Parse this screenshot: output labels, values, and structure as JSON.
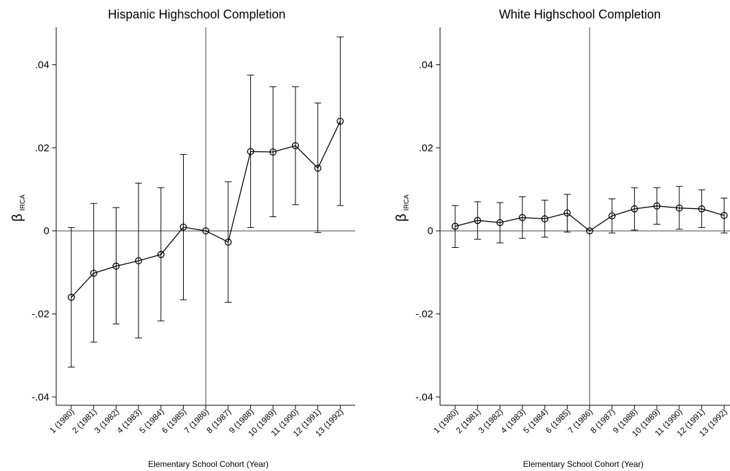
{
  "chart_data": [
    {
      "type": "line",
      "title": "Hispanic Highschool Completion",
      "xlabel": "Elementary School Cohort (Year)",
      "ylabel": "β",
      "ylabel_sub": "IRCA",
      "ylim": [
        -0.042,
        0.049
      ],
      "yticks": [
        -0.04,
        -0.02,
        0,
        0.02,
        0.04
      ],
      "ytick_labels": [
        "-.04",
        "-.02",
        "0",
        ".02",
        ".04"
      ],
      "categories": [
        "1 (1980)",
        "2 (1981)",
        "3 (1982)",
        "4 (1983)",
        "5 (1984)",
        "6 (1985)",
        "7 (1986)",
        "8 (1987)",
        "9 (1988)",
        "10 (1989)",
        "11 (1990)",
        "12 (1991)",
        "13 (1992)"
      ],
      "reference_line_x": "7 (1986)",
      "reference_line_y": 0,
      "series": [
        {
          "values": [
            -0.016,
            -0.0102,
            -0.0085,
            -0.0072,
            -0.0057,
            0.0009,
            0.0,
            -0.0027,
            0.0191,
            0.019,
            0.0205,
            0.0151,
            0.0264
          ],
          "ci_low": [
            -0.0328,
            -0.0268,
            -0.0224,
            -0.0258,
            -0.0217,
            -0.0166,
            null,
            -0.0172,
            0.0008,
            0.0034,
            0.0063,
            -0.0004,
            0.0061
          ],
          "ci_high": [
            0.0008,
            0.0066,
            0.0056,
            0.0115,
            0.0104,
            0.0184,
            null,
            0.0118,
            0.0375,
            0.0347,
            0.0347,
            0.0308,
            0.0467
          ]
        }
      ]
    },
    {
      "type": "line",
      "title": "White Highschool Completion",
      "xlabel": "Elementary School Cohort (Year)",
      "ylabel": "β",
      "ylabel_sub": "IRCA",
      "ylim": [
        -0.042,
        0.049
      ],
      "yticks": [
        -0.04,
        -0.02,
        0,
        0.02,
        0.04
      ],
      "ytick_labels": [
        "-.04",
        "-.02",
        "0",
        ".02",
        ".04"
      ],
      "categories": [
        "1 (1980)",
        "2 (1981)",
        "3 (1982)",
        "4 (1983)",
        "5 (1984)",
        "6 (1985)",
        "7 (1986)",
        "8 (1987)",
        "9 (1988)",
        "10 (1989)",
        "11 (1990)",
        "12 (1991)",
        "13 (1992)"
      ],
      "reference_line_x": "7 (1986)",
      "reference_line_y": 0,
      "series": [
        {
          "values": [
            0.0011,
            0.0025,
            0.002,
            0.0032,
            0.0029,
            0.0043,
            0.0,
            0.0036,
            0.0053,
            0.006,
            0.0055,
            0.0053,
            0.0037
          ],
          "ci_low": [
            -0.004,
            -0.002,
            -0.0029,
            -0.0018,
            -0.0015,
            -0.0003,
            null,
            -0.0005,
            0.0002,
            0.0016,
            0.0004,
            0.0008,
            -0.0005
          ],
          "ci_high": [
            0.0061,
            0.007,
            0.0068,
            0.0082,
            0.0074,
            0.0088,
            null,
            0.0077,
            0.0104,
            0.0104,
            0.0107,
            0.0099,
            0.0079
          ]
        }
      ]
    }
  ]
}
